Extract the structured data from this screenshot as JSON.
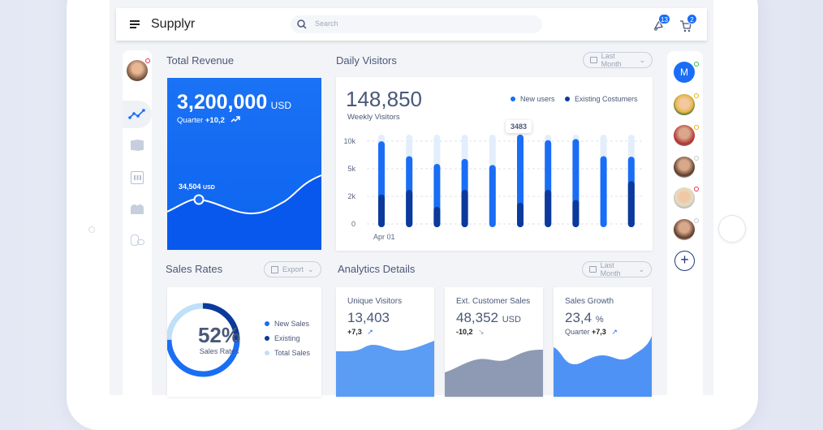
{
  "header": {
    "app_name": "Supplyr",
    "search_placeholder": "Search",
    "notifications_count": "13",
    "cart_count": "2"
  },
  "sidebar": {
    "items": [
      "analytics",
      "products",
      "reports",
      "users",
      "finance"
    ],
    "active": "analytics"
  },
  "revenue": {
    "title": "Total Revenue",
    "amount": "3,200,000",
    "currency": "USD",
    "period_label": "Quarter",
    "change": "+10,2",
    "point_value": "34,504",
    "point_currency": "USD",
    "color": "#1a6ef5"
  },
  "daily_visitors": {
    "title": "Daily Visitors",
    "filter": "Last Month",
    "total": "148,850",
    "subtitle": "Weekly Visitors",
    "tooltip": "3483"
  },
  "chart_data": {
    "type": "bar",
    "x_tick_labels": [
      "Apr 01"
    ],
    "y_tick_labels": [
      "0",
      "2k",
      "5k",
      "10k"
    ],
    "y_ticks": [
      0,
      2000,
      5000,
      10000
    ],
    "grid": true,
    "legend_position": "top-right",
    "series": [
      {
        "name": "New users",
        "color": "#1a6ef5",
        "values": [
          9400,
          6700,
          5300,
          6200,
          5100,
          10600,
          9600,
          9800,
          6700,
          6600
        ]
      },
      {
        "name": "Existing Costumers",
        "color": "#0b3a9c",
        "values": [
          1900,
          2350,
          1000,
          2350,
          0,
          1300,
          2350,
          1500,
          0,
          3300
        ]
      }
    ],
    "annotations": [
      "3483"
    ]
  },
  "sales_rates": {
    "title": "Sales Rates",
    "export_label": "Export",
    "percent": "52%",
    "label": "Sales Rates",
    "legend": [
      {
        "label": "New Sales",
        "color": "#1a6ef5",
        "share": 50
      },
      {
        "label": "Existing",
        "color": "#0b3a9c",
        "share": 25
      },
      {
        "label": "Total Sales",
        "color": "#bfe0f7",
        "share": 25
      }
    ]
  },
  "analytics": {
    "title": "Analytics Details",
    "filter": "Last Month",
    "cards": [
      {
        "title": "Unique Visitors",
        "value": "13,403",
        "unit": "",
        "prefix": "",
        "change": "+7,3",
        "trend": "up",
        "color": "#5b9cf5"
      },
      {
        "title": "Ext. Customer Sales",
        "value": "48,352",
        "unit": "USD",
        "prefix": "",
        "change": "-10,2",
        "trend": "down",
        "color": "#8e9ab3"
      },
      {
        "title": "Sales Growth",
        "value": "23,4",
        "unit": "%",
        "prefix": "Quarter",
        "change": "+7,3",
        "trend": "up",
        "color": "#4f92f5"
      }
    ]
  },
  "contacts": [
    {
      "initial": "M",
      "status": "#3bb54a"
    },
    {
      "status": "#f0b400"
    },
    {
      "status": "#f0b400"
    },
    {
      "status": "#c8c8c8"
    },
    {
      "status": "#e0304a"
    },
    {
      "status": "#c8c8c8"
    }
  ]
}
